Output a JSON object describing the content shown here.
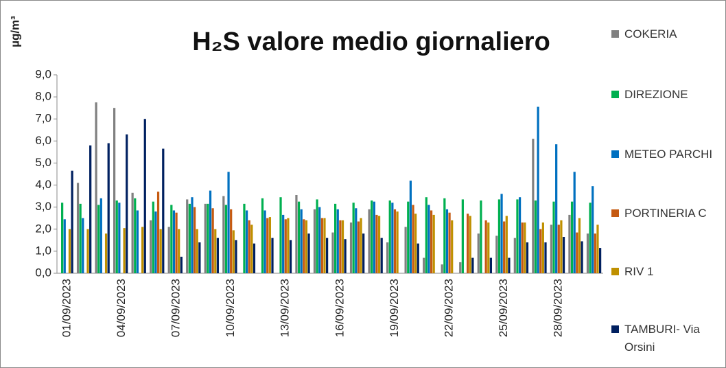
{
  "chart_data": {
    "type": "bar",
    "title": "H₂S valore medio giornaliero",
    "y_label": "µg/m³",
    "categories": [
      "01/09/2023",
      null,
      null,
      "04/09/2023",
      null,
      null,
      "07/09/2023",
      null,
      null,
      "10/09/2023",
      null,
      null,
      "13/09/2023",
      null,
      null,
      "16/09/2023",
      null,
      null,
      "19/09/2023",
      null,
      null,
      "22/09/2023",
      null,
      null,
      "25/09/2023",
      null,
      null,
      "28/09/2023",
      null,
      null
    ],
    "series": [
      {
        "name": "COKERIA",
        "color": "#808080",
        "values": [
          null,
          4.1,
          7.75,
          7.5,
          3.65,
          2.4,
          2.1,
          3.35,
          3.15,
          3.5,
          null,
          null,
          null,
          3.55,
          2.9,
          1.85,
          2.3,
          2.9,
          1.4,
          2.1,
          0.7,
          0.4,
          0.5,
          1.8,
          1.7,
          1.6,
          6.1,
          2.2,
          2.65,
          1.8
        ]
      },
      {
        "name": "DIREZIONE",
        "color": "#00b050",
        "values": [
          3.2,
          3.15,
          3.1,
          3.3,
          3.4,
          3.25,
          3.1,
          3.15,
          3.15,
          3.1,
          3.15,
          3.4,
          3.45,
          3.25,
          3.35,
          3.15,
          3.2,
          3.3,
          3.3,
          3.25,
          3.45,
          3.4,
          3.35,
          3.3,
          3.35,
          3.35,
          3.3,
          3.25,
          3.25,
          3.2
        ]
      },
      {
        "name": "METEO PARCHI",
        "color": "#0070c0",
        "values": [
          2.45,
          2.5,
          3.4,
          3.2,
          2.85,
          2.8,
          2.85,
          3.45,
          3.75,
          4.6,
          2.85,
          2.85,
          2.65,
          2.9,
          3.0,
          2.9,
          2.95,
          3.25,
          3.2,
          4.2,
          3.1,
          2.9,
          null,
          null,
          3.6,
          3.45,
          7.55,
          5.85,
          4.6,
          3.95
        ]
      },
      {
        "name": "PORTINERIA C",
        "color": "#c55a11",
        "values": [
          null,
          null,
          null,
          null,
          null,
          3.7,
          2.75,
          3.0,
          2.95,
          2.9,
          2.4,
          2.5,
          2.45,
          2.45,
          2.5,
          2.4,
          2.35,
          2.65,
          2.9,
          3.1,
          2.85,
          2.75,
          2.7,
          2.4,
          2.35,
          2.3,
          2.0,
          2.2,
          1.85,
          1.8
        ]
      },
      {
        "name": "RIV 1",
        "color": "#bf9000",
        "values": [
          2.0,
          2.0,
          1.8,
          2.05,
          2.1,
          2.0,
          2.0,
          2.0,
          2.0,
          1.95,
          2.2,
          2.55,
          2.5,
          2.4,
          2.5,
          2.4,
          2.5,
          2.6,
          2.8,
          2.7,
          2.65,
          2.4,
          2.6,
          2.3,
          2.6,
          2.3,
          2.3,
          2.4,
          2.5,
          2.2
        ]
      },
      {
        "name": "TAMBURI- Via Orsini",
        "color": "#002060",
        "values": [
          4.65,
          5.8,
          5.9,
          6.3,
          7.0,
          5.65,
          0.75,
          1.4,
          1.6,
          1.5,
          1.35,
          1.6,
          1.5,
          1.8,
          1.6,
          1.55,
          1.8,
          1.6,
          null,
          1.35,
          null,
          null,
          0.7,
          0.7,
          0.7,
          1.4,
          1.4,
          1.65,
          1.45,
          1.15
        ]
      }
    ],
    "ylim": [
      0,
      9
    ],
    "yticks": [
      {
        "value": 0,
        "label": "0,0"
      },
      {
        "value": 1,
        "label": "1,0"
      },
      {
        "value": 2,
        "label": "2,0"
      },
      {
        "value": 3,
        "label": "3,0"
      },
      {
        "value": 4,
        "label": "4,0"
      },
      {
        "value": 5,
        "label": "5,0"
      },
      {
        "value": 6,
        "label": "6,0"
      },
      {
        "value": 7,
        "label": "7,0"
      },
      {
        "value": 8,
        "label": "8,0"
      },
      {
        "value": 9,
        "label": "9,0"
      }
    ],
    "grid": false,
    "legend": "right"
  }
}
